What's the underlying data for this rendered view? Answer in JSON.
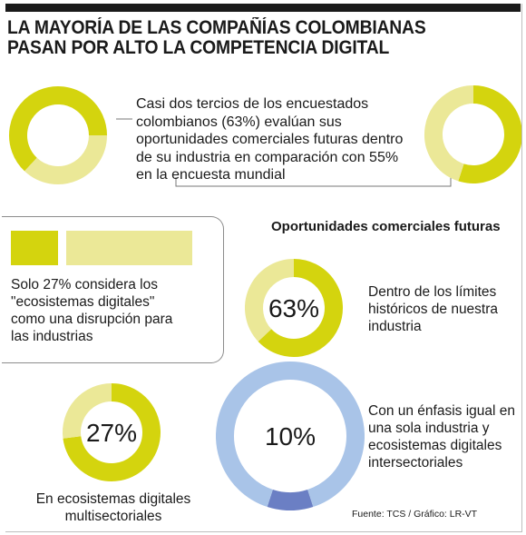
{
  "title": "LA MAYORÍA DE LAS COMPAÑÍAS COLOMBIANAS\nPASAN POR ALTO LA COMPETENCIA DIGITAL",
  "intro_text": "Casi dos tercios de los encuestados colombianos (63%) evalúan sus oportunidades comerciales futuras dentro de su industria en comparación con 55% en la encuesta mundial",
  "box_text": "Solo 27% considera los \"ecosistemas digitales\" como una disrupción para las industrias",
  "subhead": "Oportunidades comerciales futuras",
  "source": "Fuente: TCS / Gráfico: LR-VT",
  "colors": {
    "accent": "#d4d40e",
    "accent_light": "#ebe897",
    "blue_light": "#a9c4e8",
    "blue_dark": "#6b7fc4"
  },
  "chart_data": [
    {
      "type": "pie",
      "variant": "donut",
      "name": "colombia-63",
      "values": [
        63,
        37
      ],
      "label": ""
    },
    {
      "type": "pie",
      "variant": "donut",
      "name": "global-55",
      "values": [
        55,
        45
      ],
      "label": ""
    },
    {
      "type": "bar",
      "name": "ecosistemas-27",
      "values": [
        27,
        73
      ],
      "label": ""
    },
    {
      "type": "pie",
      "variant": "donut",
      "name": "limites-historicos",
      "values": [
        63,
        37
      ],
      "label": "63%",
      "caption": "Dentro de los límites históricos de nuestra industria"
    },
    {
      "type": "pie",
      "variant": "donut",
      "name": "multisectoriales",
      "values": [
        27,
        73
      ],
      "label": "27%",
      "caption": "En ecosistemas digitales multisectoriales"
    },
    {
      "type": "pie",
      "variant": "donut",
      "name": "enfasis-igual",
      "values": [
        10,
        90
      ],
      "label": "10%",
      "caption": "Con un énfasis igual en una sola industria y ecosistemas digitales intersectoriales"
    }
  ]
}
